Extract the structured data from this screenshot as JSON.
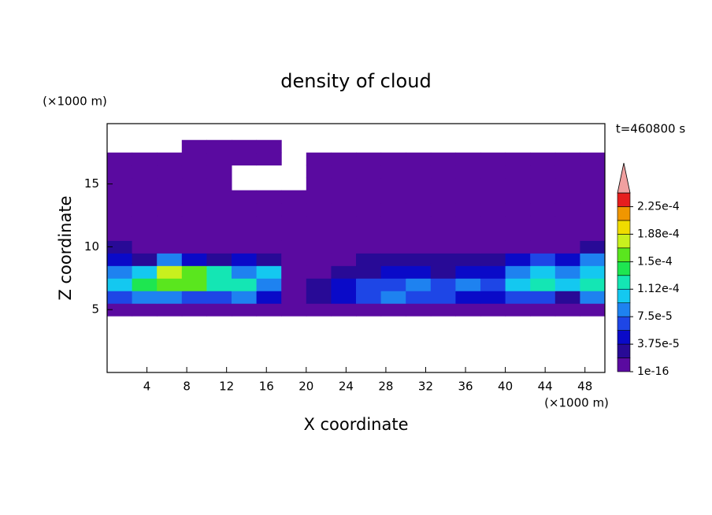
{
  "chart_data": {
    "type": "contour",
    "title": "density of cloud",
    "x_label": "X coordinate",
    "y_label": "Z coordinate",
    "x_unit": "(×1000 m)",
    "y_unit": "(×1000 m)",
    "time_label": "t=460800 s",
    "xlim": [
      0,
      50
    ],
    "ylim": [
      0,
      19.8
    ],
    "xticks": [
      4,
      8,
      12,
      16,
      20,
      24,
      28,
      32,
      36,
      40,
      44,
      48
    ],
    "yticks": [
      5,
      10,
      15
    ],
    "x": [
      1.25,
      3.75,
      6.25,
      8.75,
      11.25,
      13.75,
      16.25,
      18.75,
      21.25,
      23.75,
      26.25,
      28.75,
      31.25,
      33.75,
      36.25,
      38.75,
      41.25,
      43.75,
      46.25,
      48.75
    ],
    "z": [
      5,
      6,
      7,
      8,
      9,
      10,
      11,
      12,
      13,
      14,
      15,
      16,
      17,
      18
    ],
    "values": [
      [
        1e-05,
        1e-05,
        1e-05,
        1e-05,
        1e-05,
        1e-05,
        1e-05,
        1e-05,
        1e-05,
        1e-05,
        1e-05,
        1e-05,
        1e-05,
        1e-05,
        1e-05,
        1e-05,
        1e-05,
        1e-05,
        1e-05,
        1e-05
      ],
      [
        6.5e-05,
        8.5e-05,
        8.5e-05,
        6.5e-05,
        6.5e-05,
        8.5e-05,
        4.5e-05,
        1e-05,
        2.5e-05,
        4.5e-05,
        6.5e-05,
        8.5e-05,
        6.5e-05,
        6.5e-05,
        4.5e-05,
        4.5e-05,
        6.5e-05,
        6.5e-05,
        2.5e-05,
        8.5e-05
      ],
      [
        0.0001,
        0.00014,
        0.00016,
        0.00016,
        0.00012,
        0.00012,
        8.5e-05,
        1e-05,
        2.5e-05,
        4.5e-05,
        6.5e-05,
        6.5e-05,
        8.5e-05,
        6.5e-05,
        8.5e-05,
        6.5e-05,
        0.0001,
        0.00012,
        0.0001,
        0.00012
      ],
      [
        8.5e-05,
        0.0001,
        0.00018,
        0.00016,
        0.00012,
        8.5e-05,
        0.0001,
        1e-05,
        1e-05,
        2.5e-05,
        2.5e-05,
        4.5e-05,
        4.5e-05,
        2.5e-05,
        4.5e-05,
        4.5e-05,
        8.5e-05,
        0.0001,
        8.5e-05,
        0.0001
      ],
      [
        4.5e-05,
        2.5e-05,
        8.5e-05,
        4.5e-05,
        2.5e-05,
        4.5e-05,
        2.5e-05,
        1e-05,
        1e-05,
        1e-05,
        2.5e-05,
        2.5e-05,
        2.5e-05,
        2.5e-05,
        2.5e-05,
        2.5e-05,
        4.5e-05,
        6.5e-05,
        4.5e-05,
        8.5e-05
      ],
      [
        2.5e-05,
        1e-05,
        1e-05,
        1e-05,
        1e-05,
        1e-05,
        1e-05,
        1e-05,
        1e-05,
        1e-05,
        1e-05,
        1e-05,
        1e-05,
        1e-05,
        1e-05,
        1e-05,
        1e-05,
        1e-05,
        1e-05,
        2.5e-05
      ],
      [
        1e-05,
        1e-05,
        1e-05,
        1e-05,
        1e-05,
        1e-05,
        1e-05,
        1e-05,
        1e-05,
        1e-05,
        1e-05,
        1e-05,
        1e-05,
        1e-05,
        1e-05,
        1e-05,
        1e-05,
        1e-05,
        1e-05,
        1e-05
      ],
      [
        1e-05,
        1e-05,
        1e-05,
        1e-05,
        1e-05,
        1e-05,
        1e-05,
        1e-05,
        1e-05,
        1e-05,
        1e-05,
        1e-05,
        1e-05,
        1e-05,
        1e-05,
        1e-05,
        1e-05,
        1e-05,
        1e-05,
        1e-05
      ],
      [
        1e-05,
        1e-05,
        1e-05,
        1e-05,
        1e-05,
        1e-05,
        1e-05,
        1e-05,
        1e-05,
        1e-05,
        1e-05,
        1e-05,
        1e-05,
        1e-05,
        1e-05,
        1e-05,
        1e-05,
        1e-05,
        1e-05,
        1e-05
      ],
      [
        1e-05,
        1e-05,
        1e-05,
        1e-05,
        1e-05,
        1e-05,
        1e-05,
        1e-05,
        1e-05,
        1e-05,
        1e-05,
        1e-05,
        1e-05,
        1e-05,
        1e-05,
        1e-05,
        1e-05,
        1e-05,
        1e-05,
        1e-05
      ],
      [
        1e-05,
        1e-05,
        1e-05,
        1e-05,
        1e-05,
        null,
        null,
        null,
        1e-05,
        1e-05,
        1e-05,
        1e-05,
        1e-05,
        1e-05,
        1e-05,
        1e-05,
        1e-05,
        1e-05,
        1e-05,
        1e-05
      ],
      [
        1e-05,
        1e-05,
        1e-05,
        1e-05,
        1e-05,
        null,
        null,
        null,
        1e-05,
        1e-05,
        1e-05,
        1e-05,
        1e-05,
        1e-05,
        1e-05,
        1e-05,
        1e-05,
        1e-05,
        1e-05,
        1e-05
      ],
      [
        1e-05,
        1e-05,
        1e-05,
        1e-05,
        1e-05,
        1e-05,
        1e-05,
        null,
        1e-05,
        1e-05,
        1e-05,
        1e-05,
        1e-05,
        1e-05,
        1e-05,
        1e-05,
        1e-05,
        1e-05,
        1e-05,
        1e-05
      ],
      [
        null,
        null,
        null,
        1e-05,
        1e-05,
        1e-05,
        1e-05,
        null,
        null,
        null,
        null,
        null,
        null,
        null,
        null,
        null,
        null,
        null,
        null,
        null
      ]
    ],
    "colorbar": {
      "levels": [
        1e-16,
        1.875e-05,
        3.75e-05,
        5.625e-05,
        7.5e-05,
        9.375e-05,
        0.0001125,
        0.00013125,
        0.00015,
        0.00016875,
        0.0001875,
        0.00020625,
        0.000225,
        0.00024375
      ],
      "colors": [
        "#5a0aa0",
        "#280a96",
        "#0a0ac8",
        "#1e46e6",
        "#1e82f0",
        "#14c8f0",
        "#14e6b4",
        "#1ee650",
        "#5ae61e",
        "#c8f01e",
        "#f0dc00",
        "#f09600",
        "#e61e1e"
      ],
      "extend_color": "#f0a0a0",
      "ticks": [
        1e-16,
        {
          "value": 3.75e-05,
          "label": "3.75e-5"
        },
        {
          "value": 7.5e-05,
          "label": "7.5e-5"
        },
        {
          "value": 0.0001125,
          "label": "1.12e-4"
        },
        {
          "value": 0.00015,
          "label": "1.5e-4"
        },
        {
          "value": 0.0001875,
          "label": "1.88e-4"
        },
        {
          "value": 0.000225,
          "label": "2.25e-4"
        }
      ]
    }
  }
}
